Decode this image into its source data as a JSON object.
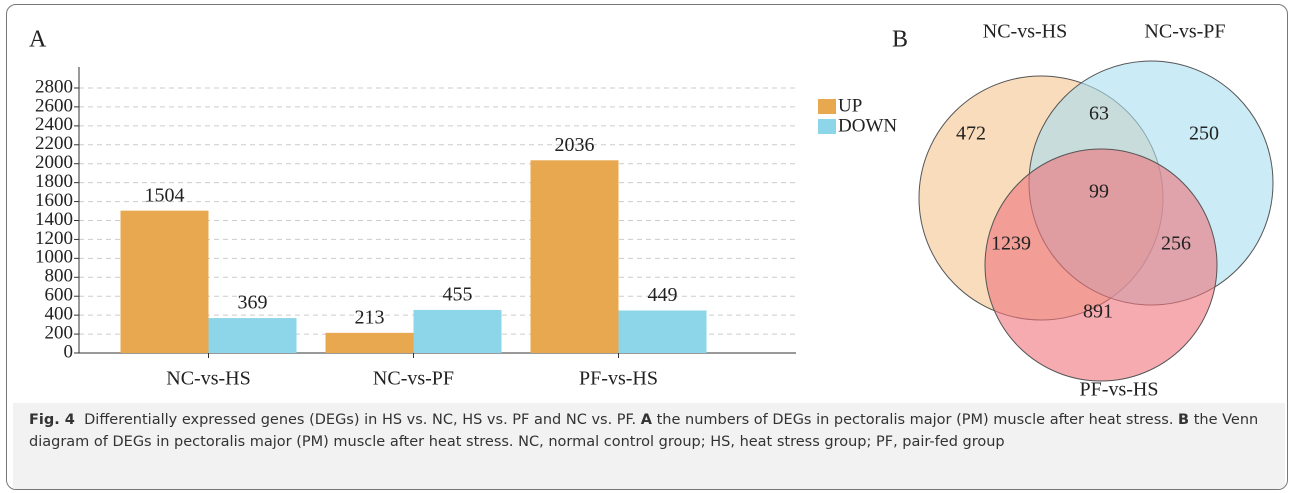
{
  "chart_data": [
    {
      "type": "bar",
      "panel": "A",
      "categories": [
        "NC-vs-HS",
        "NC-vs-PF",
        "PF-vs-HS"
      ],
      "series": [
        {
          "name": "UP",
          "color": "#e8a84f",
          "values": [
            1504,
            213,
            2036
          ]
        },
        {
          "name": "DOWN",
          "color": "#8dd5e8",
          "values": [
            369,
            455,
            449
          ]
        }
      ],
      "ylim": [
        0,
        2800
      ],
      "yticks": [
        0,
        200,
        400,
        600,
        800,
        1000,
        1200,
        1400,
        1600,
        1800,
        2000,
        2200,
        2400,
        2600,
        2800
      ],
      "grid": true,
      "legend": "top-right"
    },
    {
      "type": "venn",
      "panel": "B",
      "sets": [
        {
          "name": "NC-vs-HS",
          "color": "#f3c58e"
        },
        {
          "name": "NC-vs-PF",
          "color": "#a8def0"
        },
        {
          "name": "PF-vs-HS",
          "color": "#ee737c"
        }
      ],
      "regions": [
        {
          "sets": [
            0
          ],
          "value": 472
        },
        {
          "sets": [
            1
          ],
          "value": 250
        },
        {
          "sets": [
            2
          ],
          "value": 891
        },
        {
          "sets": [
            0,
            1
          ],
          "value": 63
        },
        {
          "sets": [
            0,
            2
          ],
          "value": 1239
        },
        {
          "sets": [
            1,
            2
          ],
          "value": 256
        },
        {
          "sets": [
            0,
            1,
            2
          ],
          "value": 99
        }
      ]
    }
  ],
  "caption": {
    "figure": "Fig. 4",
    "text": "Differentially expressed genes (DEGs) in HS vs. NC, HS vs. PF and NC vs. PF.",
    "panels": [
      {
        "label": "A",
        "text": "the numbers of DEGs in pectoralis major (PM) muscle after heat stress."
      },
      {
        "label": "B",
        "text": "the Venn diagram of DEGs in pectoralis major (PM) muscle after heat stress. NC, normal control group; HS, heat stress group; PF, pair-fed group"
      }
    ]
  }
}
